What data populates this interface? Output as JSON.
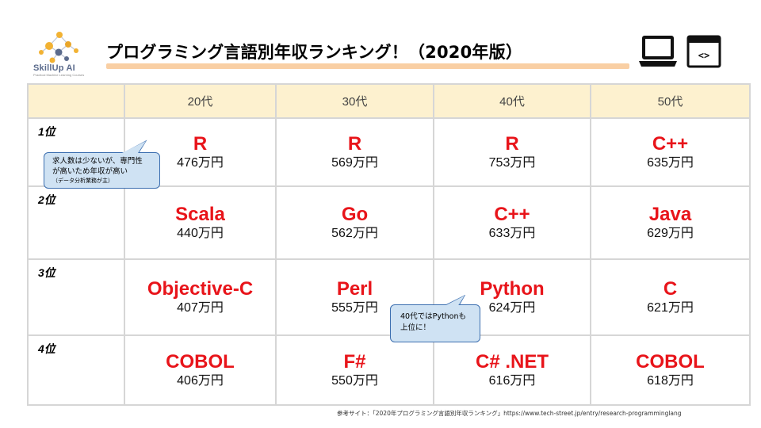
{
  "logo": {
    "name": "SkillUp AI",
    "tagline": "Practical Machine Learning Courses"
  },
  "title": "プログラミング言語別年収ランキング！（2020年版）",
  "icons": [
    "laptop-icon",
    "code-window-icon"
  ],
  "colors": {
    "accent_line": "#f9cfa4",
    "header_bg": "#fdf1cf",
    "language_red": "#e8141a",
    "bubble_bg": "#cfe2f3",
    "bubble_border": "#3d6fb0"
  },
  "table": {
    "columns": [
      "20代",
      "30代",
      "40代",
      "50代"
    ],
    "rows": [
      {
        "rank": "1位",
        "cells": [
          {
            "lang": "R",
            "salary": "476万円"
          },
          {
            "lang": "R",
            "salary": "569万円"
          },
          {
            "lang": "R",
            "salary": "753万円"
          },
          {
            "lang": "C++",
            "salary": "635万円"
          }
        ]
      },
      {
        "rank": "2位",
        "cells": [
          {
            "lang": "Scala",
            "salary": "440万円"
          },
          {
            "lang": "Go",
            "salary": "562万円"
          },
          {
            "lang": "C++",
            "salary": "633万円"
          },
          {
            "lang": "Java",
            "salary": "629万円"
          }
        ]
      },
      {
        "rank": "3位",
        "cells": [
          {
            "lang": "Objective-C",
            "salary": "407万円"
          },
          {
            "lang": "Perl",
            "salary": "555万円"
          },
          {
            "lang": "Python",
            "salary": "624万円"
          },
          {
            "lang": "C",
            "salary": "621万円"
          }
        ]
      },
      {
        "rank": "4位",
        "cells": [
          {
            "lang": "COBOL",
            "salary": "406万円"
          },
          {
            "lang": "F#",
            "salary": "550万円"
          },
          {
            "lang": "C# .NET",
            "salary": "616万円"
          },
          {
            "lang": "COBOL",
            "salary": "618万円"
          }
        ]
      }
    ]
  },
  "callouts": {
    "r_note": {
      "line1": "求人数は少ないが、専門性",
      "line2": "が高いため年収が高い",
      "sub": "（データ分析業務が主）"
    },
    "python_note": {
      "line1": "40代ではPythonも",
      "line2": "上位に！"
    }
  },
  "source": "参考サイト：「2020年プログラミング言語別年収ランキング」https://www.tech-street.jp/entry/research-programminglang"
}
